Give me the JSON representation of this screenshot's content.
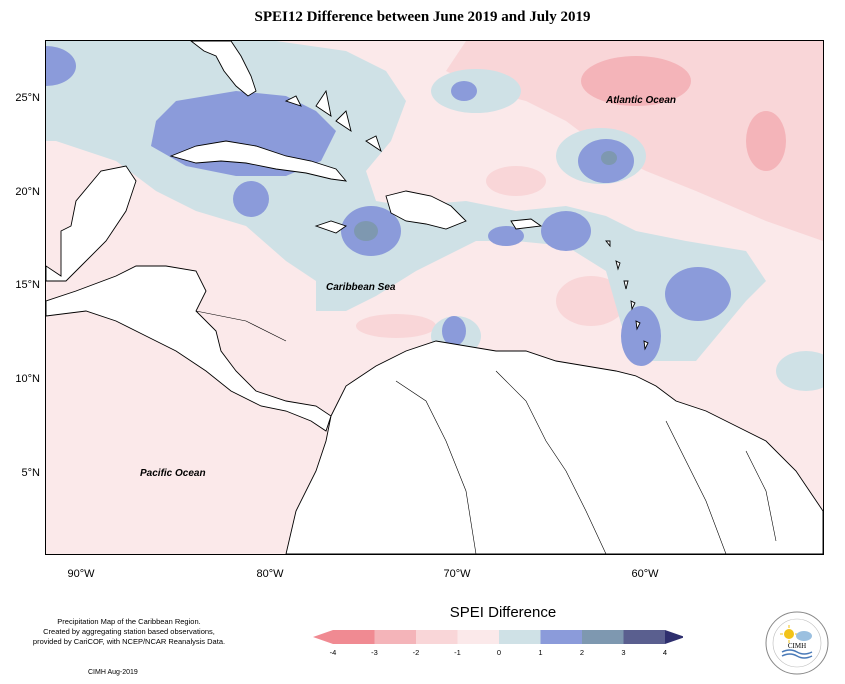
{
  "title": "SPEI12 Difference between June 2019 and July 2019",
  "map": {
    "y_axis_labels": [
      "25°N",
      "20°N",
      "15°N",
      "10°N",
      "5°N"
    ],
    "x_axis_labels": [
      "90°W",
      "80°W",
      "70°W",
      "60°W"
    ],
    "ocean_labels": {
      "atlantic": "Atlantic Ocean",
      "caribbean": "Caribbean Sea",
      "pacific": "Pacific Ocean"
    }
  },
  "legend": {
    "title": "SPEI Difference",
    "ticks": [
      "-4",
      "-3",
      "-2",
      "-1",
      "0",
      "1",
      "2",
      "3",
      "4"
    ],
    "colors": [
      "#f08a92",
      "#f4b4b9",
      "#f9d6d8",
      "#fbe9ea",
      "#cfe1e6",
      "#8b9bda",
      "#7e98b0",
      "#5a5f8f",
      "#2e2f6e"
    ]
  },
  "credit": {
    "line1": "Precipitation Map of the Caribbean Region.",
    "line2": "Created by aggregating station based observations,",
    "line3": "provided by CariCOF, with NCEP/NCAR Reanalysis Data.",
    "date": "CIMH Aug-2019"
  },
  "logo": {
    "text": "CIMH"
  }
}
